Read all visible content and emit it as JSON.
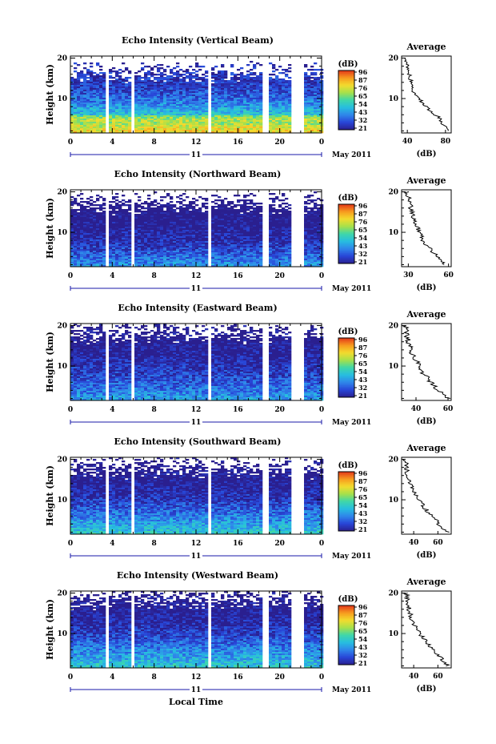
{
  "chart_data": [
    {
      "type": "heatmap",
      "title": "Echo Intensity (Vertical Beam)",
      "ylabel": "Height (km)",
      "y_ticks": [
        10,
        20
      ],
      "ylim": [
        1.5,
        20.5
      ],
      "x_ticks": [
        "0",
        "4",
        "8",
        "12",
        "16",
        "20",
        "0"
      ],
      "xlim": [
        0,
        24
      ],
      "date_day": "11",
      "date_month": "May 2011",
      "data_gaps_hours": [
        [
          3.2,
          3.6
        ],
        [
          5.6,
          5.9
        ],
        [
          12.9,
          13.2
        ],
        [
          18.3,
          18.7
        ],
        [
          21.0,
          22.3
        ]
      ],
      "colorbar": {
        "unit": "(dB)",
        "ticks": [
          "96",
          "87",
          "76",
          "65",
          "54",
          "43",
          "32",
          "21"
        ],
        "range": [
          21,
          96
        ]
      },
      "average_profile": {
        "title": "Average",
        "xlabel": "(dB)",
        "x_ticks": [
          "40",
          "80"
        ],
        "xlim": [
          34,
          86
        ],
        "y_ticks": [
          10,
          20
        ],
        "ylim": [
          1.5,
          20.5
        ],
        "height_km": [
          2,
          3,
          4,
          5,
          6,
          8,
          10,
          12,
          14,
          16,
          18,
          20
        ],
        "intensity_db": [
          84,
          80,
          74,
          76,
          68,
          60,
          52,
          46,
          44,
          42,
          40,
          38
        ]
      }
    },
    {
      "type": "heatmap",
      "title": "Echo Intensity (Northward Beam)",
      "ylabel": "Height (km)",
      "y_ticks": [
        10,
        20
      ],
      "ylim": [
        1.5,
        20.5
      ],
      "x_ticks": [
        "0",
        "4",
        "8",
        "12",
        "16",
        "20",
        "0"
      ],
      "xlim": [
        0,
        24
      ],
      "date_day": "11",
      "date_month": "May 2011",
      "data_gaps_hours": [
        [
          3.2,
          3.6
        ],
        [
          5.6,
          5.9
        ],
        [
          12.9,
          13.2
        ],
        [
          18.3,
          18.7
        ],
        [
          21.0,
          22.3
        ]
      ],
      "colorbar": {
        "unit": "(dB)",
        "ticks": [
          "96",
          "87",
          "76",
          "65",
          "54",
          "43",
          "32",
          "21"
        ],
        "range": [
          21,
          96
        ]
      },
      "average_profile": {
        "title": "Average",
        "xlabel": "(dB)",
        "x_ticks": [
          "30",
          "60"
        ],
        "xlim": [
          25,
          62
        ],
        "y_ticks": [
          10,
          20
        ],
        "ylim": [
          1.5,
          20.5
        ],
        "height_km": [
          2,
          4,
          6,
          8,
          10,
          12,
          14,
          16,
          18,
          20
        ],
        "intensity_db": [
          58,
          52,
          46,
          41,
          38,
          36,
          34,
          32,
          31,
          29
        ]
      }
    },
    {
      "type": "heatmap",
      "title": "Echo Intensity (Eastward Beam)",
      "ylabel": "Height (km)",
      "y_ticks": [
        10,
        20
      ],
      "ylim": [
        1.5,
        20.5
      ],
      "x_ticks": [
        "0",
        "4",
        "8",
        "12",
        "16",
        "20",
        "0"
      ],
      "xlim": [
        0,
        24
      ],
      "date_day": "11",
      "date_month": "May 2011",
      "data_gaps_hours": [
        [
          3.2,
          3.6
        ],
        [
          5.6,
          5.9
        ],
        [
          12.9,
          13.2
        ],
        [
          18.3,
          18.7
        ],
        [
          21.0,
          22.3
        ]
      ],
      "colorbar": {
        "unit": "(dB)",
        "ticks": [
          "96",
          "87",
          "76",
          "65",
          "54",
          "43",
          "32",
          "21"
        ],
        "range": [
          21,
          96
        ]
      },
      "average_profile": {
        "title": "Average",
        "xlabel": "(dB)",
        "x_ticks": [
          "40",
          "60"
        ],
        "xlim": [
          31,
          62
        ],
        "y_ticks": [
          10,
          20
        ],
        "ylim": [
          1.5,
          20.5
        ],
        "height_km": [
          2,
          4,
          6,
          8,
          10,
          12,
          14,
          16,
          18,
          20
        ],
        "intensity_db": [
          60,
          54,
          49,
          45,
          42,
          39,
          37,
          35,
          34,
          33
        ]
      }
    },
    {
      "type": "heatmap",
      "title": "Echo Intensity (Southward Beam)",
      "ylabel": "Height (km)",
      "y_ticks": [
        10,
        20
      ],
      "ylim": [
        1.5,
        20.5
      ],
      "x_ticks": [
        "0",
        "4",
        "8",
        "12",
        "16",
        "20",
        "0"
      ],
      "xlim": [
        0,
        24
      ],
      "date_day": "11",
      "date_month": "May 2011",
      "data_gaps_hours": [
        [
          3.2,
          3.6
        ],
        [
          5.6,
          5.9
        ],
        [
          12.9,
          13.2
        ],
        [
          18.3,
          18.7
        ],
        [
          21.0,
          22.3
        ]
      ],
      "colorbar": {
        "unit": "(dB)",
        "ticks": [
          "96",
          "87",
          "76",
          "65",
          "54",
          "43",
          "32",
          "21"
        ],
        "range": [
          21,
          96
        ]
      },
      "average_profile": {
        "title": "Average",
        "xlabel": "(dB)",
        "x_ticks": [
          "40",
          "60"
        ],
        "xlim": [
          30,
          71
        ],
        "y_ticks": [
          10,
          20
        ],
        "ylim": [
          1.5,
          20.5
        ],
        "height_km": [
          2,
          4,
          6,
          8,
          10,
          12,
          14,
          16,
          18,
          20
        ],
        "intensity_db": [
          68,
          61,
          55,
          49,
          44,
          40,
          37,
          35,
          34,
          33
        ]
      }
    },
    {
      "type": "heatmap",
      "title": "Echo Intensity (Westward Beam)",
      "ylabel": "Height (km)",
      "y_ticks": [
        10,
        20
      ],
      "ylim": [
        1.5,
        20.5
      ],
      "x_ticks": [
        "0",
        "4",
        "8",
        "12",
        "16",
        "20",
        "0"
      ],
      "xlim": [
        0,
        24
      ],
      "date_day": "11",
      "date_month": "May 2011",
      "data_gaps_hours": [
        [
          3.2,
          3.6
        ],
        [
          5.6,
          5.9
        ],
        [
          12.9,
          13.2
        ],
        [
          18.3,
          18.7
        ],
        [
          21.0,
          22.3
        ]
      ],
      "colorbar": {
        "unit": "(dB)",
        "ticks": [
          "96",
          "87",
          "76",
          "65",
          "54",
          "43",
          "32",
          "21"
        ],
        "range": [
          21,
          96
        ]
      },
      "average_profile": {
        "title": "Average",
        "xlabel": "(dB)",
        "x_ticks": [
          "40",
          "60"
        ],
        "xlim": [
          30,
          71
        ],
        "y_ticks": [
          10,
          20
        ],
        "ylim": [
          1.5,
          20.5
        ],
        "height_km": [
          2,
          4,
          6,
          8,
          10,
          12,
          14,
          16,
          18,
          20
        ],
        "intensity_db": [
          68,
          62,
          56,
          50,
          45,
          41,
          38,
          36,
          35,
          34
        ]
      }
    }
  ],
  "xlabel": "Local Time",
  "colors": {
    "colormap": [
      "#2a1f8f",
      "#2846d8",
      "#2f86ea",
      "#27bde0",
      "#3fd7a8",
      "#a7e04a",
      "#f3dc2e",
      "#f79a1e",
      "#e2361a"
    ]
  }
}
